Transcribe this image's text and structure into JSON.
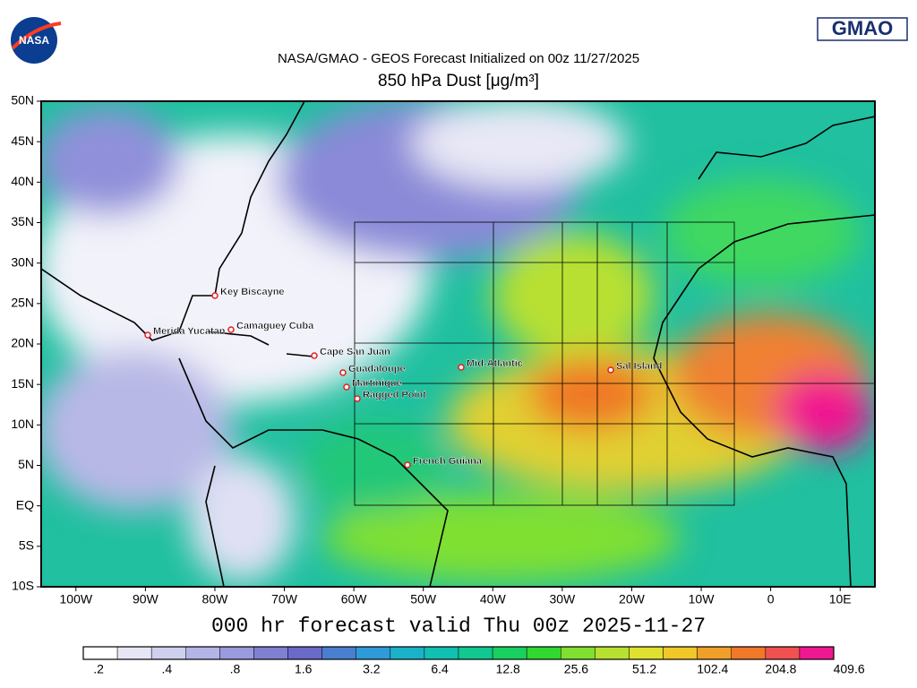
{
  "header": {
    "logo_left": "NASA",
    "logo_right": "GMAO",
    "title": "NASA/GMAO - GEOS Forecast Initialized on 00z 11/27/2025",
    "subtitle": "850 hPa Dust [μg/m³]"
  },
  "map": {
    "lat_labels": [
      "50N",
      "45N",
      "40N",
      "35N",
      "30N",
      "25N",
      "20N",
      "15N",
      "10N",
      "5N",
      "EQ",
      "5S",
      "10S"
    ],
    "lon_labels": [
      "100W",
      "90W",
      "80W",
      "70W",
      "60W",
      "50W",
      "40W",
      "30W",
      "20W",
      "10W",
      "0",
      "10E"
    ],
    "stations": [
      "Key Biscayne",
      "Merida Yucatan",
      "Camaguey Cuba",
      "Cape San Juan",
      "Guadaloupe",
      "Martinique",
      "Ragged Point",
      "Mid-Atlantic",
      "Sal Island",
      "French Guiana"
    ]
  },
  "footer": "000 hr forecast valid Thu 00z 2025-11-27",
  "colorbar": {
    "labels": [
      ".2",
      ".4",
      ".8",
      "1.6",
      "3.2",
      "6.4",
      "12.8",
      "25.6",
      "51.2",
      "102.4",
      "204.8",
      "409.6"
    ],
    "colors": [
      "#ffffff",
      "#e6e6f5",
      "#cfcfee",
      "#b4b4e6",
      "#9a9ade",
      "#8080d2",
      "#6a6ac8",
      "#4a7fd0",
      "#2f9ad8",
      "#1ab2c8",
      "#10c0b0",
      "#10c890",
      "#18d060",
      "#30d830",
      "#80e030",
      "#b8e030",
      "#e0e030",
      "#f0c828",
      "#f0a028",
      "#f07828",
      "#f05050",
      "#f01890"
    ]
  }
}
